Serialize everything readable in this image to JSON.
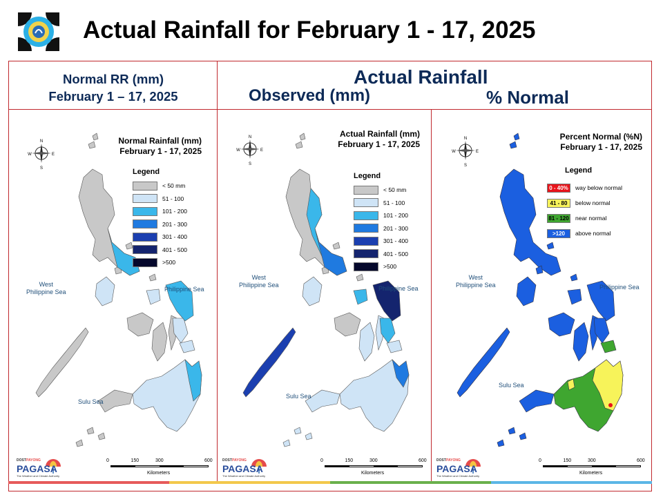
{
  "header": {
    "title": "Actual Rainfall for February 1 - 17, 2025"
  },
  "columns": {
    "normal_line1": "Normal RR (mm)",
    "normal_line2": "February 1 – 17, 2025",
    "actual": "Actual Rainfall",
    "observed": "Observed (mm)",
    "percent": "% Normal"
  },
  "maps": [
    {
      "title_line1": "Normal Rainfall (mm)",
      "title_line2": "February 1 - 17, 2025",
      "legend_title": "Legend",
      "legend": [
        {
          "label": "< 50 mm",
          "color": "#c8c8c8"
        },
        {
          "label": "51 - 100",
          "color": "#cfe4f6"
        },
        {
          "label": "101 - 200",
          "color": "#3ab7ea"
        },
        {
          "label": "201 - 300",
          "color": "#1f7ae0"
        },
        {
          "label": "301 - 400",
          "color": "#1b3fb0"
        },
        {
          "label": "401 - 500",
          "color": "#14246e"
        },
        {
          "label": ">500",
          "color": "#05082c"
        }
      ],
      "sea_west_1": "West",
      "sea_west_2": "Philippine Sea",
      "sea_east": "Philippine Sea",
      "sea_south": "Sulu Sea"
    },
    {
      "title_line1": "Actual Rainfall (mm)",
      "title_line2": "February 1 - 17, 2025",
      "legend_title": "Legend",
      "legend": [
        {
          "label": "< 50 mm",
          "color": "#c8c8c8"
        },
        {
          "label": "51 - 100",
          "color": "#cfe4f6"
        },
        {
          "label": "101 - 200",
          "color": "#3ab7ea"
        },
        {
          "label": "201 - 300",
          "color": "#1f7ae0"
        },
        {
          "label": "301 - 400",
          "color": "#1b3fb0"
        },
        {
          "label": "401 - 500",
          "color": "#14246e"
        },
        {
          "label": ">500",
          "color": "#05082c"
        }
      ],
      "sea_west_1": "West",
      "sea_west_2": "Philippine Sea",
      "sea_east": "Philippine Sea",
      "sea_south": "Sulu Sea"
    },
    {
      "title_line1": "Percent Normal (%N)",
      "title_line2": "February 1 - 17, 2025",
      "legend_title": "Legend",
      "legend": [
        {
          "range": "0 - 40%",
          "label": "way below normal",
          "color": "#e8141b",
          "text_color": "#ffffff"
        },
        {
          "range": "41 - 80",
          "label": "below normal",
          "color": "#f7f35a",
          "text_color": "#000000"
        },
        {
          "range": "81 - 120",
          "label": "near normal",
          "color": "#3fa630",
          "text_color": "#000000"
        },
        {
          "range": ">120",
          "label": "above normal",
          "color": "#1b5fe0",
          "text_color": "#ffffff"
        }
      ],
      "sea_west_1": "West",
      "sea_west_2": "Philippine Sea",
      "sea_east": "Philippine Sea",
      "sea_south": "Sulu Sea"
    }
  ],
  "compass": {
    "n": "N",
    "s": "S",
    "e": "E",
    "w": "W"
  },
  "scale": {
    "ticks": [
      "0",
      "150",
      "300",
      "600"
    ],
    "unit": "Kilometers"
  },
  "branding": {
    "org": "PAGASA",
    "pre": "DOST",
    "tag": "PAYONG",
    "slogan": "The Weather and Climate Authority"
  },
  "bottom_bar_colors": [
    "#e65a5a",
    "#f2c84b",
    "#6ab04c",
    "#5bb6e6"
  ]
}
